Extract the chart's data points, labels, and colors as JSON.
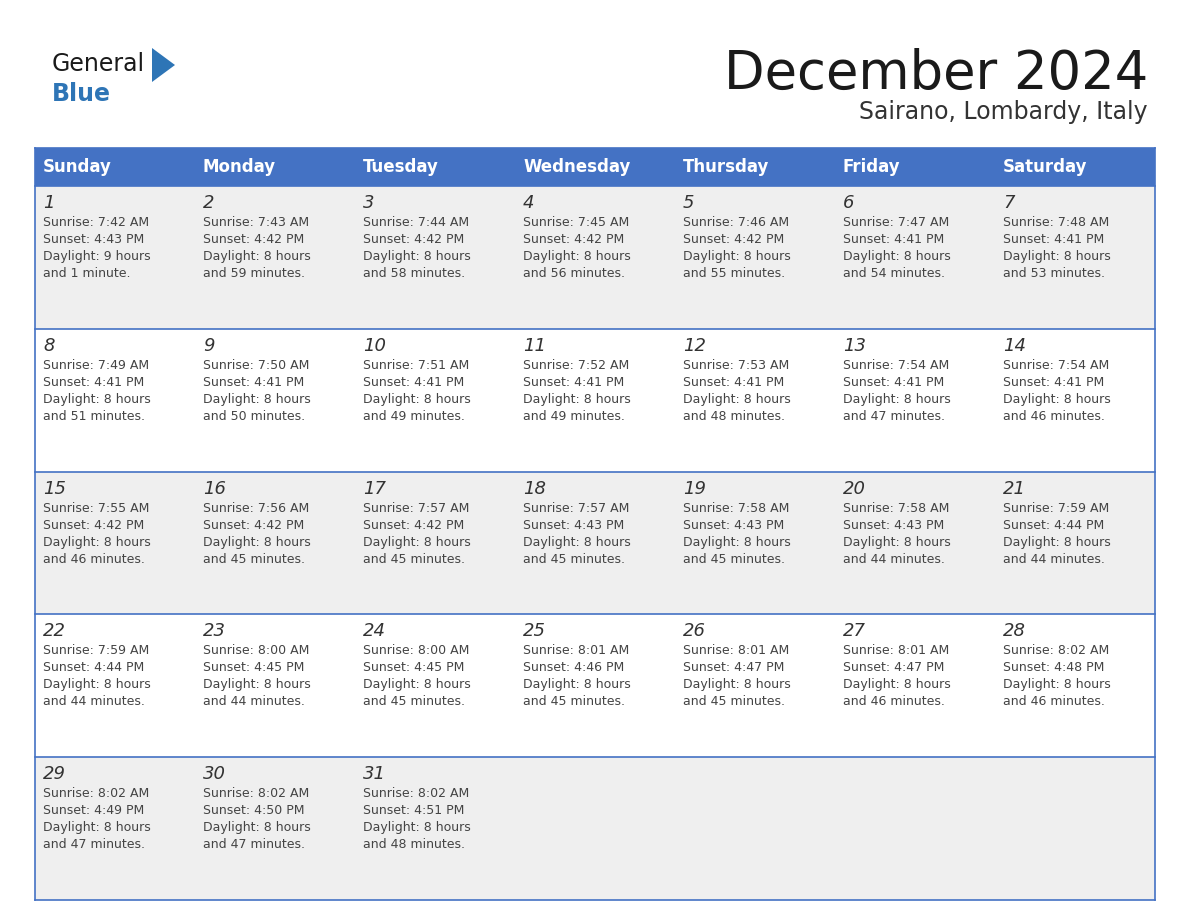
{
  "title": "December 2024",
  "subtitle": "Sairano, Lombardy, Italy",
  "days_of_week": [
    "Sunday",
    "Monday",
    "Tuesday",
    "Wednesday",
    "Thursday",
    "Friday",
    "Saturday"
  ],
  "header_bg": "#4472C4",
  "header_text": "#FFFFFF",
  "row_bg_even": "#EFEFEF",
  "row_bg_odd": "#FFFFFF",
  "border_color": "#4472C4",
  "title_color": "#1a1a1a",
  "subtitle_color": "#333333",
  "day_number_color": "#333333",
  "cell_text_color": "#444444",
  "logo_general_color": "#1a1a1a",
  "logo_blue_color": "#2E75B6",
  "calendar_data": [
    [
      {
        "day": "1",
        "sunrise": "7:42 AM",
        "sunset": "4:43 PM",
        "daylight_line1": "Daylight: 9 hours",
        "daylight_line2": "and 1 minute."
      },
      {
        "day": "2",
        "sunrise": "7:43 AM",
        "sunset": "4:42 PM",
        "daylight_line1": "Daylight: 8 hours",
        "daylight_line2": "and 59 minutes."
      },
      {
        "day": "3",
        "sunrise": "7:44 AM",
        "sunset": "4:42 PM",
        "daylight_line1": "Daylight: 8 hours",
        "daylight_line2": "and 58 minutes."
      },
      {
        "day": "4",
        "sunrise": "7:45 AM",
        "sunset": "4:42 PM",
        "daylight_line1": "Daylight: 8 hours",
        "daylight_line2": "and 56 minutes."
      },
      {
        "day": "5",
        "sunrise": "7:46 AM",
        "sunset": "4:42 PM",
        "daylight_line1": "Daylight: 8 hours",
        "daylight_line2": "and 55 minutes."
      },
      {
        "day": "6",
        "sunrise": "7:47 AM",
        "sunset": "4:41 PM",
        "daylight_line1": "Daylight: 8 hours",
        "daylight_line2": "and 54 minutes."
      },
      {
        "day": "7",
        "sunrise": "7:48 AM",
        "sunset": "4:41 PM",
        "daylight_line1": "Daylight: 8 hours",
        "daylight_line2": "and 53 minutes."
      }
    ],
    [
      {
        "day": "8",
        "sunrise": "7:49 AM",
        "sunset": "4:41 PM",
        "daylight_line1": "Daylight: 8 hours",
        "daylight_line2": "and 51 minutes."
      },
      {
        "day": "9",
        "sunrise": "7:50 AM",
        "sunset": "4:41 PM",
        "daylight_line1": "Daylight: 8 hours",
        "daylight_line2": "and 50 minutes."
      },
      {
        "day": "10",
        "sunrise": "7:51 AM",
        "sunset": "4:41 PM",
        "daylight_line1": "Daylight: 8 hours",
        "daylight_line2": "and 49 minutes."
      },
      {
        "day": "11",
        "sunrise": "7:52 AM",
        "sunset": "4:41 PM",
        "daylight_line1": "Daylight: 8 hours",
        "daylight_line2": "and 49 minutes."
      },
      {
        "day": "12",
        "sunrise": "7:53 AM",
        "sunset": "4:41 PM",
        "daylight_line1": "Daylight: 8 hours",
        "daylight_line2": "and 48 minutes."
      },
      {
        "day": "13",
        "sunrise": "7:54 AM",
        "sunset": "4:41 PM",
        "daylight_line1": "Daylight: 8 hours",
        "daylight_line2": "and 47 minutes."
      },
      {
        "day": "14",
        "sunrise": "7:54 AM",
        "sunset": "4:41 PM",
        "daylight_line1": "Daylight: 8 hours",
        "daylight_line2": "and 46 minutes."
      }
    ],
    [
      {
        "day": "15",
        "sunrise": "7:55 AM",
        "sunset": "4:42 PM",
        "daylight_line1": "Daylight: 8 hours",
        "daylight_line2": "and 46 minutes."
      },
      {
        "day": "16",
        "sunrise": "7:56 AM",
        "sunset": "4:42 PM",
        "daylight_line1": "Daylight: 8 hours",
        "daylight_line2": "and 45 minutes."
      },
      {
        "day": "17",
        "sunrise": "7:57 AM",
        "sunset": "4:42 PM",
        "daylight_line1": "Daylight: 8 hours",
        "daylight_line2": "and 45 minutes."
      },
      {
        "day": "18",
        "sunrise": "7:57 AM",
        "sunset": "4:43 PM",
        "daylight_line1": "Daylight: 8 hours",
        "daylight_line2": "and 45 minutes."
      },
      {
        "day": "19",
        "sunrise": "7:58 AM",
        "sunset": "4:43 PM",
        "daylight_line1": "Daylight: 8 hours",
        "daylight_line2": "and 45 minutes."
      },
      {
        "day": "20",
        "sunrise": "7:58 AM",
        "sunset": "4:43 PM",
        "daylight_line1": "Daylight: 8 hours",
        "daylight_line2": "and 44 minutes."
      },
      {
        "day": "21",
        "sunrise": "7:59 AM",
        "sunset": "4:44 PM",
        "daylight_line1": "Daylight: 8 hours",
        "daylight_line2": "and 44 minutes."
      }
    ],
    [
      {
        "day": "22",
        "sunrise": "7:59 AM",
        "sunset": "4:44 PM",
        "daylight_line1": "Daylight: 8 hours",
        "daylight_line2": "and 44 minutes."
      },
      {
        "day": "23",
        "sunrise": "8:00 AM",
        "sunset": "4:45 PM",
        "daylight_line1": "Daylight: 8 hours",
        "daylight_line2": "and 44 minutes."
      },
      {
        "day": "24",
        "sunrise": "8:00 AM",
        "sunset": "4:45 PM",
        "daylight_line1": "Daylight: 8 hours",
        "daylight_line2": "and 45 minutes."
      },
      {
        "day": "25",
        "sunrise": "8:01 AM",
        "sunset": "4:46 PM",
        "daylight_line1": "Daylight: 8 hours",
        "daylight_line2": "and 45 minutes."
      },
      {
        "day": "26",
        "sunrise": "8:01 AM",
        "sunset": "4:47 PM",
        "daylight_line1": "Daylight: 8 hours",
        "daylight_line2": "and 45 minutes."
      },
      {
        "day": "27",
        "sunrise": "8:01 AM",
        "sunset": "4:47 PM",
        "daylight_line1": "Daylight: 8 hours",
        "daylight_line2": "and 46 minutes."
      },
      {
        "day": "28",
        "sunrise": "8:02 AM",
        "sunset": "4:48 PM",
        "daylight_line1": "Daylight: 8 hours",
        "daylight_line2": "and 46 minutes."
      }
    ],
    [
      {
        "day": "29",
        "sunrise": "8:02 AM",
        "sunset": "4:49 PM",
        "daylight_line1": "Daylight: 8 hours",
        "daylight_line2": "and 47 minutes."
      },
      {
        "day": "30",
        "sunrise": "8:02 AM",
        "sunset": "4:50 PM",
        "daylight_line1": "Daylight: 8 hours",
        "daylight_line2": "and 47 minutes."
      },
      {
        "day": "31",
        "sunrise": "8:02 AM",
        "sunset": "4:51 PM",
        "daylight_line1": "Daylight: 8 hours",
        "daylight_line2": "and 48 minutes."
      },
      null,
      null,
      null,
      null
    ]
  ]
}
